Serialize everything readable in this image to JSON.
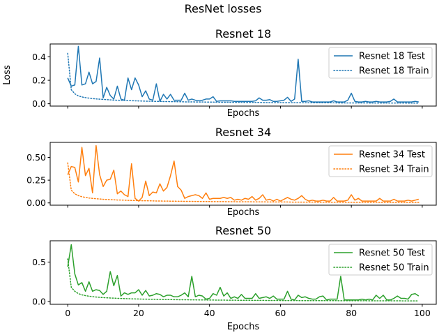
{
  "figure": {
    "suptitle": "ResNet losses"
  },
  "chart_data": [
    {
      "type": "line",
      "title": "Resnet 18",
      "xlabel": "Epochs",
      "ylabel": "Loss",
      "xlim": [
        -4.95,
        103.95
      ],
      "ylim": [
        -0.02,
        0.51
      ],
      "yticks": [
        0.0,
        0.2,
        0.4
      ],
      "ytick_labels": [
        "0.0",
        "0.2",
        "0.4"
      ],
      "xticks": [
        0,
        20,
        40,
        60,
        80,
        100
      ],
      "show_xtick_labels": false,
      "legend_position": "upper-right",
      "series": [
        {
          "name": "Resnet 18 Test",
          "color": "#1f77b4",
          "style": "solid",
          "values": [
            0.22,
            0.15,
            0.16,
            0.49,
            0.16,
            0.17,
            0.27,
            0.17,
            0.19,
            0.39,
            0.05,
            0.14,
            0.07,
            0.04,
            0.15,
            0.04,
            0.03,
            0.22,
            0.12,
            0.22,
            0.16,
            0.06,
            0.11,
            0.04,
            0.03,
            0.17,
            0.02,
            0.08,
            0.04,
            0.08,
            0.03,
            0.03,
            0.03,
            0.09,
            0.03,
            0.04,
            0.03,
            0.025,
            0.03,
            0.04,
            0.04,
            0.06,
            0.02,
            0.025,
            0.025,
            0.025,
            0.025,
            0.02,
            0.02,
            0.02,
            0.02,
            0.02,
            0.02,
            0.025,
            0.05,
            0.03,
            0.03,
            0.035,
            0.02,
            0.02,
            0.025,
            0.03,
            0.055,
            0.02,
            0.04,
            0.38,
            0.02,
            0.02,
            0.025,
            0.015,
            0.015,
            0.015,
            0.015,
            0.015,
            0.015,
            0.025,
            0.015,
            0.015,
            0.015,
            0.03,
            0.09,
            0.02,
            0.015,
            0.015,
            0.02,
            0.015,
            0.015,
            0.02,
            0.015,
            0.015,
            0.015,
            0.02,
            0.04,
            0.015,
            0.015,
            0.015,
            0.015,
            0.015,
            0.02,
            0.015
          ]
        },
        {
          "name": "Resnet 18 Train",
          "color": "#1f77b4",
          "style": "dotted",
          "values": [
            0.43,
            0.12,
            0.085,
            0.067,
            0.058,
            0.052,
            0.048,
            0.044,
            0.041,
            0.039,
            0.037,
            0.035,
            0.033,
            0.031,
            0.03,
            0.029,
            0.028,
            0.027,
            0.026,
            0.025,
            0.024,
            0.023,
            0.022,
            0.022,
            0.021,
            0.02,
            0.02,
            0.019,
            0.019,
            0.018,
            0.018,
            0.017,
            0.017,
            0.016,
            0.016,
            0.016,
            0.015,
            0.015,
            0.015,
            0.014,
            0.014,
            0.014,
            0.013,
            0.013,
            0.013,
            0.013,
            0.012,
            0.012,
            0.012,
            0.012,
            0.011,
            0.011,
            0.011,
            0.011,
            0.011,
            0.01,
            0.01,
            0.01,
            0.01,
            0.01,
            0.01,
            0.009,
            0.009,
            0.009,
            0.009,
            0.009,
            0.009,
            0.009,
            0.008,
            0.008,
            0.008,
            0.008,
            0.008,
            0.008,
            0.008,
            0.008,
            0.007,
            0.007,
            0.007,
            0.007,
            0.007,
            0.007,
            0.007,
            0.007,
            0.007,
            0.006,
            0.006,
            0.006,
            0.006,
            0.006,
            0.006,
            0.006,
            0.006,
            0.006,
            0.006,
            0.006,
            0.005,
            0.005,
            0.005,
            0.005
          ]
        }
      ]
    },
    {
      "type": "line",
      "title": "Resnet 34",
      "xlabel": "Epochs",
      "ylabel": "",
      "xlim": [
        -4.95,
        103.95
      ],
      "ylim": [
        -0.025,
        0.665
      ],
      "yticks": [
        0.0,
        0.25,
        0.5
      ],
      "ytick_labels": [
        "0.00",
        "0.25",
        "0.50"
      ],
      "xticks": [
        0,
        20,
        40,
        60,
        80,
        100
      ],
      "show_xtick_labels": false,
      "legend_position": "upper-right",
      "series": [
        {
          "name": "Resnet 34 Test",
          "color": "#ff7f0e",
          "style": "solid",
          "values": [
            0.31,
            0.4,
            0.39,
            0.23,
            0.61,
            0.3,
            0.38,
            0.11,
            0.63,
            0.31,
            0.18,
            0.25,
            0.26,
            0.36,
            0.1,
            0.13,
            0.09,
            0.07,
            0.43,
            0.05,
            0.02,
            0.06,
            0.24,
            0.08,
            0.12,
            0.11,
            0.21,
            0.13,
            0.17,
            0.3,
            0.46,
            0.18,
            0.14,
            0.05,
            0.07,
            0.08,
            0.09,
            0.08,
            0.05,
            0.11,
            0.04,
            0.05,
            0.05,
            0.05,
            0.06,
            0.05,
            0.06,
            0.03,
            0.04,
            0.03,
            0.05,
            0.04,
            0.07,
            0.03,
            0.05,
            0.09,
            0.03,
            0.04,
            0.02,
            0.04,
            0.02,
            0.04,
            0.06,
            0.04,
            0.03,
            0.05,
            0.08,
            0.04,
            0.02,
            0.03,
            0.02,
            0.02,
            0.03,
            0.02,
            0.02,
            0.06,
            0.02,
            0.02,
            0.02,
            0.03,
            0.09,
            0.03,
            0.05,
            0.02,
            0.02,
            0.02,
            0.02,
            0.02,
            0.05,
            0.02,
            0.02,
            0.02,
            0.04,
            0.02,
            0.02,
            0.02,
            0.03,
            0.02,
            0.03,
            0.04
          ]
        },
        {
          "name": "Resnet 34 Train",
          "color": "#ff7f0e",
          "style": "dotted",
          "values": [
            0.44,
            0.14,
            0.1,
            0.08,
            0.068,
            0.06,
            0.054,
            0.05,
            0.046,
            0.043,
            0.04,
            0.038,
            0.036,
            0.034,
            0.032,
            0.031,
            0.03,
            0.028,
            0.027,
            0.026,
            0.025,
            0.024,
            0.024,
            0.023,
            0.022,
            0.021,
            0.021,
            0.02,
            0.02,
            0.019,
            0.019,
            0.018,
            0.018,
            0.017,
            0.017,
            0.017,
            0.016,
            0.016,
            0.015,
            0.015,
            0.015,
            0.014,
            0.014,
            0.014,
            0.014,
            0.013,
            0.013,
            0.013,
            0.012,
            0.012,
            0.012,
            0.012,
            0.012,
            0.011,
            0.011,
            0.011,
            0.011,
            0.01,
            0.01,
            0.01,
            0.01,
            0.01,
            0.01,
            0.009,
            0.009,
            0.009,
            0.009,
            0.009,
            0.009,
            0.009,
            0.008,
            0.008,
            0.008,
            0.008,
            0.008,
            0.008,
            0.008,
            0.008,
            0.007,
            0.007,
            0.007,
            0.007,
            0.007,
            0.007,
            0.007,
            0.007,
            0.007,
            0.007,
            0.006,
            0.006,
            0.006,
            0.006,
            0.006,
            0.006,
            0.006,
            0.006,
            0.006,
            0.006,
            0.006,
            0.006
          ]
        }
      ]
    },
    {
      "type": "line",
      "title": "Resnet 50",
      "xlabel": "Epochs",
      "ylabel": "",
      "xlim": [
        -4.95,
        103.95
      ],
      "ylim": [
        -0.035,
        0.77
      ],
      "yticks": [
        0.0,
        0.5
      ],
      "ytick_labels": [
        "0.0",
        "0.5"
      ],
      "xticks": [
        0,
        20,
        40,
        60,
        80,
        100
      ],
      "xtick_labels": [
        "0",
        "20",
        "40",
        "60",
        "80",
        "100"
      ],
      "show_xtick_labels": true,
      "legend_position": "upper-right",
      "series": [
        {
          "name": "Resnet 50 Test",
          "color": "#2ca02c",
          "style": "solid",
          "values": [
            0.44,
            0.72,
            0.35,
            0.21,
            0.24,
            0.13,
            0.25,
            0.13,
            0.15,
            0.14,
            0.09,
            0.13,
            0.38,
            0.2,
            0.33,
            0.07,
            0.11,
            0.09,
            0.11,
            0.11,
            0.15,
            0.08,
            0.14,
            0.07,
            0.08,
            0.1,
            0.09,
            0.06,
            0.08,
            0.08,
            0.06,
            0.06,
            0.08,
            0.11,
            0.06,
            0.32,
            0.06,
            0.08,
            0.07,
            0.03,
            0.04,
            0.1,
            0.08,
            0.18,
            0.07,
            0.11,
            0.04,
            0.06,
            0.04,
            0.09,
            0.04,
            0.04,
            0.04,
            0.1,
            0.04,
            0.05,
            0.06,
            0.04,
            0.07,
            0.03,
            0.03,
            0.03,
            0.13,
            0.03,
            0.02,
            0.08,
            0.05,
            0.06,
            0.04,
            0.03,
            0.03,
            0.06,
            0.07,
            0.02,
            0.03,
            0.03,
            0.03,
            0.32,
            0.02,
            0.02,
            0.02,
            0.02,
            0.02,
            0.03,
            0.02,
            0.03,
            0.02,
            0.08,
            0.04,
            0.08,
            0.02,
            0.02,
            0.04,
            0.07,
            0.04,
            0.04,
            0.03,
            0.09,
            0.1,
            0.07
          ]
        },
        {
          "name": "Resnet 50 Train",
          "color": "#2ca02c",
          "style": "dotted",
          "values": [
            0.54,
            0.18,
            0.13,
            0.1,
            0.085,
            0.075,
            0.068,
            0.062,
            0.057,
            0.053,
            0.05,
            0.047,
            0.045,
            0.043,
            0.041,
            0.039,
            0.037,
            0.036,
            0.034,
            0.033,
            0.032,
            0.031,
            0.03,
            0.029,
            0.028,
            0.027,
            0.027,
            0.026,
            0.025,
            0.025,
            0.024,
            0.023,
            0.023,
            0.022,
            0.022,
            0.021,
            0.021,
            0.02,
            0.02,
            0.02,
            0.019,
            0.019,
            0.018,
            0.018,
            0.018,
            0.017,
            0.017,
            0.017,
            0.016,
            0.016,
            0.016,
            0.016,
            0.015,
            0.015,
            0.015,
            0.015,
            0.014,
            0.014,
            0.014,
            0.014,
            0.013,
            0.013,
            0.013,
            0.013,
            0.013,
            0.012,
            0.012,
            0.012,
            0.012,
            0.012,
            0.012,
            0.011,
            0.011,
            0.011,
            0.011,
            0.011,
            0.011,
            0.01,
            0.01,
            0.01,
            0.01,
            0.01,
            0.01,
            0.01,
            0.01,
            0.009,
            0.009,
            0.009,
            0.009,
            0.009,
            0.009,
            0.009,
            0.009,
            0.009,
            0.009,
            0.008,
            0.008,
            0.008,
            0.008,
            0.008
          ]
        }
      ]
    }
  ]
}
